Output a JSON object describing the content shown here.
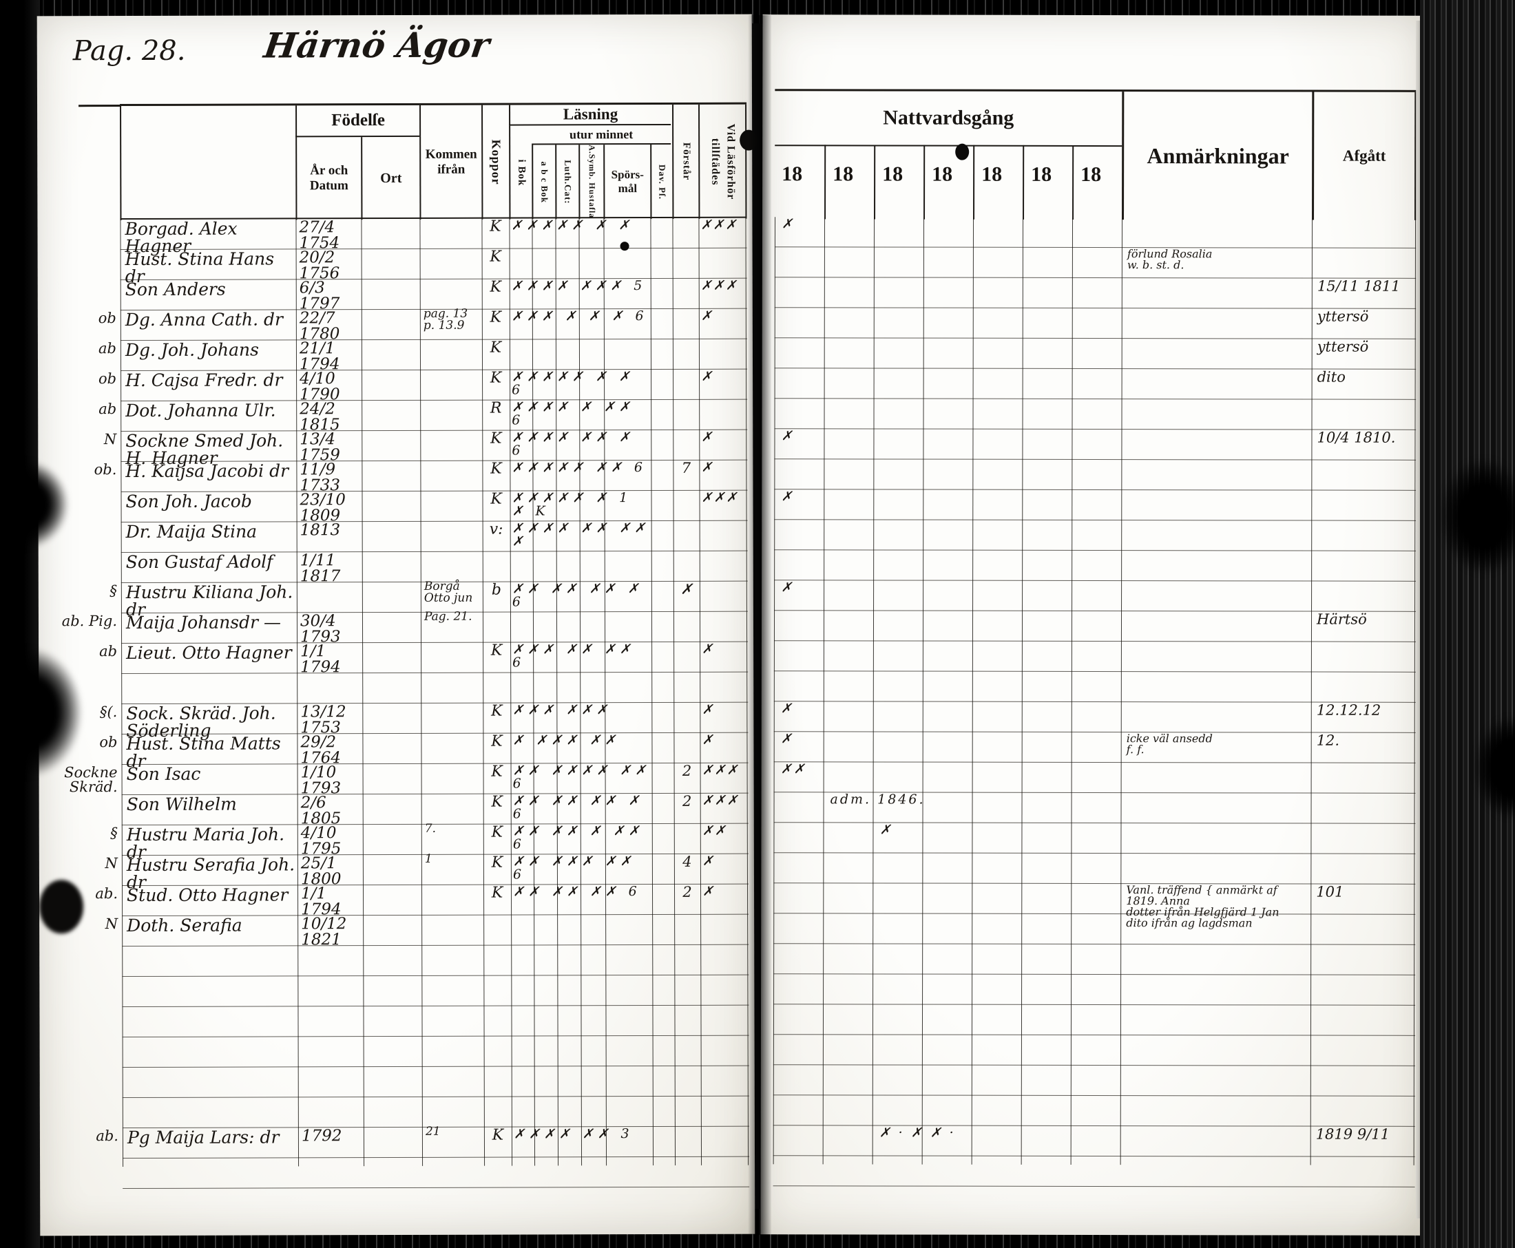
{
  "left_header": {
    "pag": "Pag. 28.",
    "title": "Härnö Ägor"
  },
  "left_table": {
    "fodelse": "Födelſe",
    "ar_och_datum": "År och\nDatum",
    "ort": "Ort",
    "kommen": "Kommen\nifrån",
    "koppor": "Koppor",
    "lasning": "Läsning",
    "utur_minnet": "utur minnet",
    "i_bok": "i Bok",
    "abc_bok": "a b c Bok",
    "luth_cat": "Luth.Cat:",
    "symb": "A.Symb. Hustafla",
    "sporsmal": "Spörs-\nmål",
    "dav": "Dav. Pſ.",
    "forstar": "Förstår",
    "vid": "Vid Läsförhör tillſtädes"
  },
  "right_table": {
    "nattvardsgang": "Nattvardsgång",
    "years": [
      "18",
      "18",
      "18",
      "18",
      "18",
      "18",
      "18"
    ],
    "anmarkningar": "Anmärkningar",
    "afgatt": "Afgått"
  },
  "rows": [
    {
      "n": "Borgad. Alex Hagner",
      "d": "27/4 1754",
      "kp": "K",
      "lm": "✗✗✗✗✗ ✗ ✗",
      "vid": "✗✗✗",
      "nv": {
        "c": 0,
        "t": "✗"
      }
    },
    {
      "n": "Hust. Stina Hans dr",
      "d": "20/2 1756",
      "kp": "K",
      "an": "förlund Rosalia\nw. b. st. d."
    },
    {
      "n": "Son Anders",
      "d": "6/3 1797",
      "kp": "K",
      "lm": "✗✗✗✗ ✗✗✗ 5",
      "vid": "✗✗✗",
      "af": "15/11 1811"
    },
    {
      "m": "ob",
      "n": "Dg. Anna Cath. dr",
      "d": "22/7 1780",
      "k": "pag. 13\np. 13.9",
      "kp": "K",
      "lm": "✗✗✗ ✗ ✗ ✗ 6",
      "vid": "✗",
      "af": "yttersö"
    },
    {
      "m": "ab",
      "n": "Dg. Joh. Johans",
      "d": "21/1 1794",
      "kp": "K",
      "af": "yttersö"
    },
    {
      "m": "ob",
      "n": "H. Cajsa Fredr. dr",
      "d": "4/10 1790",
      "kp": "K",
      "lm": "✗✗✗✗✗ ✗ ✗ 6",
      "vid": "✗",
      "af": "dito"
    },
    {
      "m": "ab",
      "n": "Dot. Johanna Ulr.",
      "d": "24/2 1815",
      "kp": "R",
      "lm": "✗✗✗✗ ✗ ✗✗ 6"
    },
    {
      "m": "N",
      "n": "Sockne Smed Joh. H. Hagner",
      "d": "13/4 1759",
      "kp": "K",
      "lm": "✗✗✗✗ ✗✗ ✗ 6",
      "vid": "✗",
      "nv": {
        "c": 0,
        "t": "✗"
      },
      "af": "10/4 1810."
    },
    {
      "m": "ob.",
      "n": "H. Kaijsa Jacobi dr",
      "d": "11/9 1733",
      "kp": "K",
      "lm": "✗✗✗✗✗ ✗✗ 6",
      "x1": "7",
      "vid": "✗"
    },
    {
      "n": "Son Joh. Jacob",
      "d": "23/10 1809",
      "kp": "K",
      "lm": "✗✗✗✗✗ ✗ 1 ✗ K",
      "vid": "✗✗✗",
      "nv": {
        "c": 0,
        "t": "✗"
      }
    },
    {
      "n": "Dr. Maija Stina",
      "d": "1813",
      "kp": "v:",
      "lm": "✗✗✗✗ ✗✗ ✗✗ ✗"
    },
    {
      "n": "Son Gustaf Adolf",
      "d": "1/11 1817"
    },
    {
      "m": "§",
      "n": "Hustru Kiliana Joh. dr",
      "k": "Borgå Otto jun",
      "kp": "b",
      "lm": "✗✗ ✗✗ ✗✗ ✗ 6",
      "x1": "✗",
      "nv": {
        "c": 0,
        "t": "✗"
      }
    },
    {
      "m": "ab. Pig.",
      "n": "Maija Johansdr —",
      "d": "30/4 1793",
      "k": "Pag. 21.",
      "af": "Härtsö"
    },
    {
      "m": "ab",
      "n": "Lieut. Otto Hagner",
      "d": "1/1 1794",
      "kp": "K",
      "lm": "✗✗✗ ✗✗ ✗✗ 6",
      "vid": "✗"
    },
    {},
    {
      "m": "§(.",
      "n": "Sock. Skräd. Joh. Söderling",
      "d": "13/12 1753",
      "kp": "K",
      "lm": "✗✗✗ ✗✗✗",
      "vid": "✗",
      "nv": {
        "c": 0,
        "t": "✗"
      },
      "af": "12.12.12"
    },
    {
      "m": "ob",
      "n": "Hust. Stina Matts dr",
      "d": "29/2 1764",
      "kp": "K",
      "lm": "✗ ✗✗✗ ✗✗",
      "vid": "✗",
      "nv": {
        "c": 0,
        "t": "✗"
      },
      "af": "12.",
      "an": "icke väl ansedd\nf. f."
    },
    {
      "m": "Sockne Skräd.",
      "n": "Son Isac",
      "d": "1/10 1793",
      "kp": "K",
      "lm": "✗✗ ✗✗✗✗ ✗✗ 6",
      "x1": "2",
      "vid": "✗✗✗",
      "nv": {
        "c": 0,
        "t": "✗✗"
      }
    },
    {
      "n": "Son Wilhelm",
      "d": "2/6 1805",
      "kp": "K",
      "lm": "✗✗ ✗✗ ✗✗ ✗ 6",
      "x1": "2",
      "vid": "✗✗✗",
      "nv": {
        "c": 1,
        "t": "adm. 1846."
      }
    },
    {
      "m": "§",
      "n": "Hustru Maria Joh. dr",
      "d": "4/10 1795",
      "k": "7.",
      "kp": "K",
      "lm": "✗✗ ✗✗ ✗ ✗✗ 6",
      "vid": "✗✗",
      "nv": {
        "c": 2,
        "t": "✗"
      }
    },
    {
      "m": "N",
      "n": "Hustru Serafia Joh. dr",
      "d": "25/1 1800",
      "k": "1",
      "kp": "K",
      "lm": "✗✗ ✗✗✗ ✗✗ 6",
      "x1": "4",
      "vid": "✗"
    },
    {
      "m": "ab.",
      "n": "Stud. Otto Hagner",
      "d": "1/1 1794",
      "kp": "K",
      "lm": "✗✗ ✗✗ ✗✗ 6",
      "x1": "2",
      "vid": "✗",
      "an": "Vanl. träffend { anmärkt af 1819. Anna\ndotter ifrån Helgfjärd 1 Jan\ndito ifrån ag lagdsman",
      "af": "101"
    },
    {
      "m": "N",
      "n": "Doth. Serafia",
      "d": "10/12 1821"
    },
    {},
    {},
    {},
    {},
    {},
    {},
    {
      "m": "ab.",
      "n": "Pg Maija Lars: dr",
      "d": "1792",
      "k": "21",
      "kp": "K",
      "lm": "✗✗✗✗ ✗✗ 3",
      "nv": {
        "c": 2,
        "t": "✗ · ✗ ✗ ·"
      },
      "af": "1819 9/11"
    },
    {}
  ]
}
